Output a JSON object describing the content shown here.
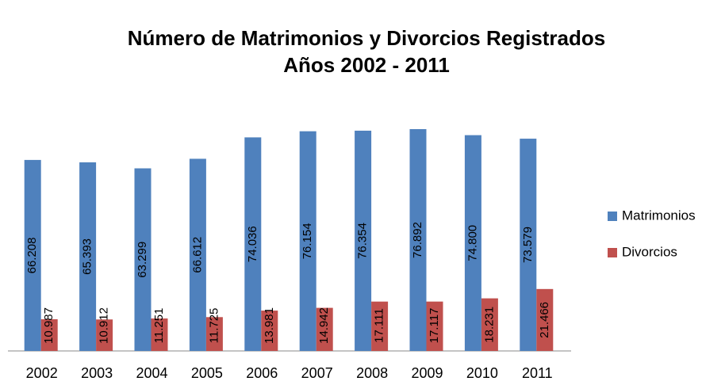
{
  "chart_data": {
    "type": "bar",
    "title": "Número de Matrimonios y Divorcios Registrados",
    "subtitle": "Años 2002 - 2011",
    "categories": [
      "2002",
      "2003",
      "2004",
      "2005",
      "2006",
      "2007",
      "2008",
      "2009",
      "2010",
      "2011"
    ],
    "series": [
      {
        "name": "Matrimonios",
        "color": "#4F81BD",
        "values": [
          66208,
          65393,
          63299,
          66612,
          74036,
          76154,
          76354,
          76892,
          74800,
          73579
        ],
        "value_labels": [
          "66.208",
          "65.393",
          "63.299",
          "66.612",
          "74.036",
          "76.154",
          "76.354",
          "76.892",
          "74.800",
          "73.579"
        ]
      },
      {
        "name": "Divorcios",
        "color": "#C0504D",
        "values": [
          10987,
          10912,
          11251,
          11725,
          13981,
          14942,
          17111,
          17117,
          18231,
          21466
        ],
        "value_labels": [
          "10.987",
          "10.912",
          "11.251",
          "11.725",
          "13.981",
          "14.942",
          "17.111",
          "17.117",
          "18.231",
          "21.466"
        ]
      }
    ],
    "legend": "right"
  }
}
